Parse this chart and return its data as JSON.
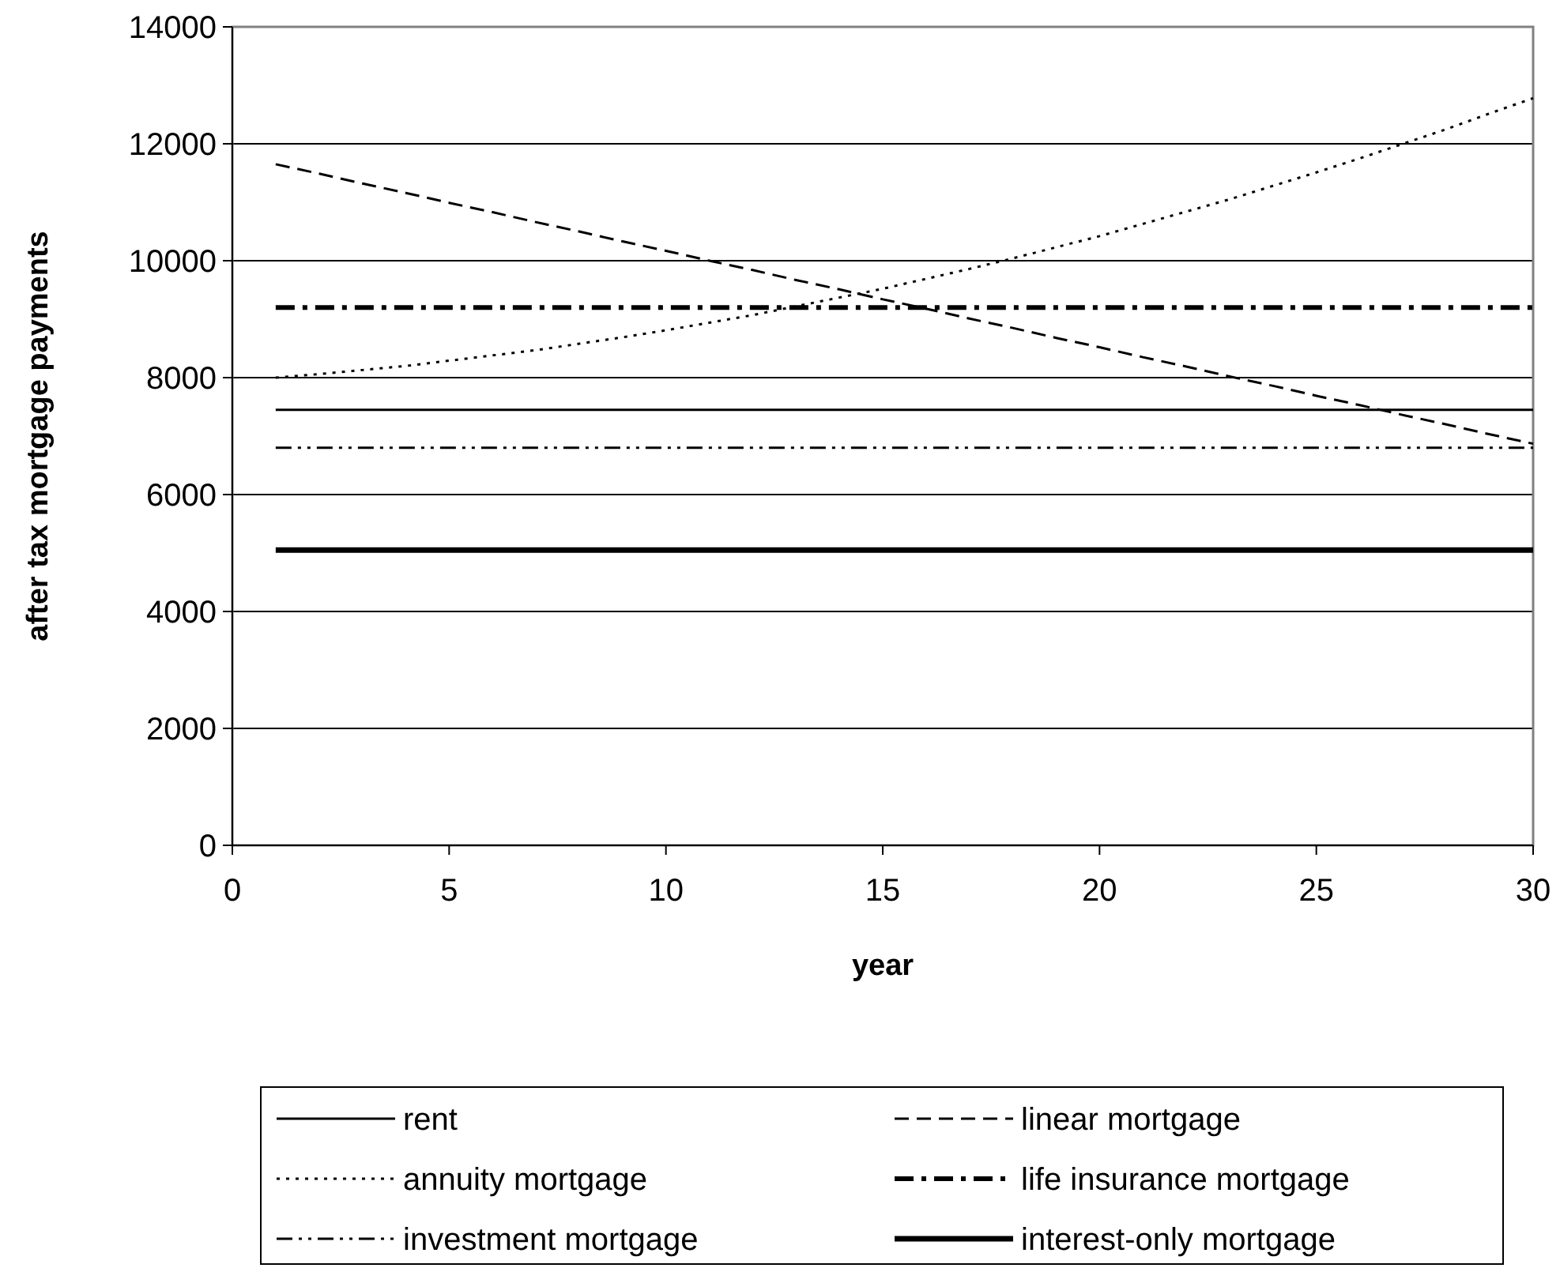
{
  "chart_data": {
    "type": "line",
    "xlabel": "year",
    "ylabel": "after tax mortgage payments",
    "x": [
      1,
      2,
      3,
      4,
      5,
      6,
      7,
      8,
      9,
      10,
      11,
      12,
      13,
      14,
      15,
      16,
      17,
      18,
      19,
      20,
      21,
      22,
      23,
      24,
      25,
      26,
      27,
      28,
      29,
      30
    ],
    "xlim": [
      0,
      30
    ],
    "xticks": [
      0,
      5,
      10,
      15,
      20,
      25,
      30
    ],
    "ylim": [
      0,
      14000
    ],
    "yticks": [
      0,
      2000,
      4000,
      6000,
      8000,
      10000,
      12000,
      14000
    ],
    "grid": "y",
    "legend": "bottom",
    "marker": "none",
    "series": [
      {
        "name": "rent",
        "color": "#000000",
        "line_style": "solid",
        "values": [
          7450,
          7450,
          7450,
          7450,
          7450,
          7450,
          7450,
          7450,
          7450,
          7450,
          7450,
          7450,
          7450,
          7450,
          7450,
          7450,
          7450,
          7450,
          7450,
          7450,
          7450,
          7450,
          7450,
          7450,
          7450,
          7450,
          7450,
          7450,
          7450,
          7450
        ]
      },
      {
        "name": "linear mortgage",
        "color": "#000000",
        "line_style": "dashed",
        "values": [
          11650,
          11490,
          11320,
          11160,
          10990,
          10830,
          10660,
          10500,
          10330,
          10170,
          10000,
          9840,
          9670,
          9510,
          9340,
          9180,
          9010,
          8850,
          8680,
          8520,
          8350,
          8190,
          8020,
          7860,
          7690,
          7530,
          7360,
          7200,
          7030,
          6870
        ]
      },
      {
        "name": "annuity mortgage",
        "color": "#000000",
        "line_style": "dotted",
        "values": [
          8000,
          8060,
          8130,
          8200,
          8290,
          8380,
          8470,
          8580,
          8690,
          8810,
          8940,
          9070,
          9220,
          9370,
          9520,
          9690,
          9860,
          10040,
          10230,
          10420,
          10630,
          10840,
          11050,
          11280,
          11510,
          11750,
          12000,
          12250,
          12520,
          12780
        ]
      },
      {
        "name": "life insurance mortgage",
        "color": "#000000",
        "line_style": "dashdot",
        "values": [
          9200,
          9200,
          9200,
          9200,
          9200,
          9200,
          9200,
          9200,
          9200,
          9200,
          9200,
          9200,
          9200,
          9200,
          9200,
          9200,
          9200,
          9200,
          9200,
          9200,
          9200,
          9200,
          9200,
          9200,
          9200,
          9200,
          9200,
          9200,
          9200,
          9200
        ]
      },
      {
        "name": "investment mortgage",
        "color": "#000000",
        "line_style": "dashdotdot",
        "values": [
          6800,
          6800,
          6800,
          6800,
          6800,
          6800,
          6800,
          6800,
          6800,
          6800,
          6800,
          6800,
          6800,
          6800,
          6800,
          6800,
          6800,
          6800,
          6800,
          6800,
          6800,
          6800,
          6800,
          6800,
          6800,
          6800,
          6800,
          6800,
          6800,
          6800
        ]
      },
      {
        "name": "interest-only mortgage",
        "color": "#000000",
        "line_style": "solid",
        "values": [
          5050,
          5050,
          5050,
          5050,
          5050,
          5050,
          5050,
          5050,
          5050,
          5050,
          5050,
          5050,
          5050,
          5050,
          5050,
          5050,
          5050,
          5050,
          5050,
          5050,
          5050,
          5050,
          5050,
          5050,
          5050,
          5050,
          5050,
          5050,
          5050,
          5050
        ]
      }
    ]
  }
}
